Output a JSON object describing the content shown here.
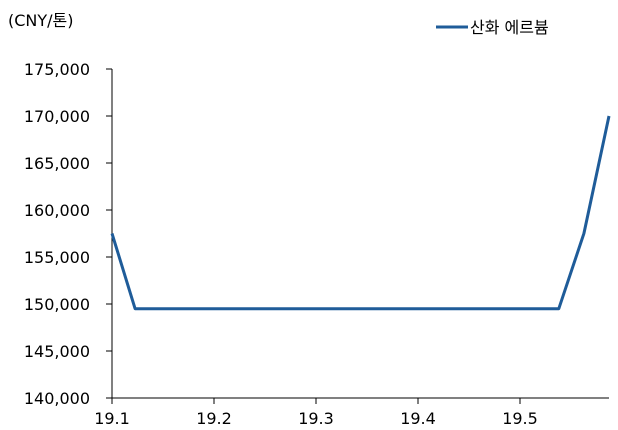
{
  "chart_data": {
    "type": "line",
    "unit_label": "(CNY/톤)",
    "x_ticks": [
      "19.1",
      "19.2",
      "19.3",
      "19.4",
      "19.5"
    ],
    "y_ticks": [
      "140,000",
      "145,000",
      "150,000",
      "155,000",
      "160,000",
      "165,000",
      "170,000",
      "175,000"
    ],
    "ylim": [
      140000,
      175000
    ],
    "xlim": [
      1.0,
      5.95
    ],
    "legend_position": "top-right",
    "series": [
      {
        "name": "산화 에르븀",
        "color": "#1F5C99",
        "x": [
          1.0,
          1.23,
          5.45,
          5.7,
          5.95
        ],
        "y": [
          157500,
          149500,
          149500,
          157500,
          170000
        ]
      }
    ]
  }
}
